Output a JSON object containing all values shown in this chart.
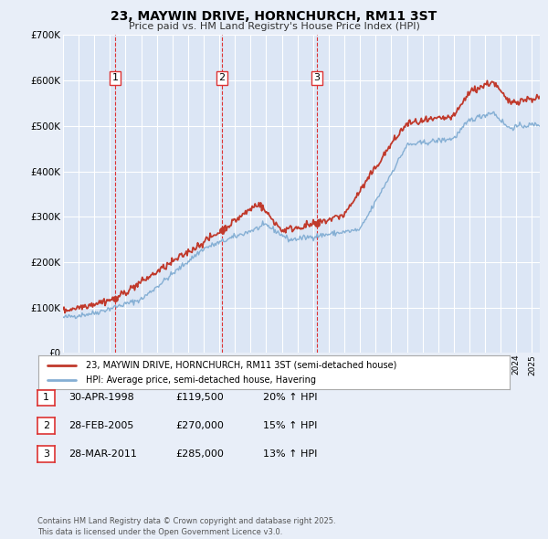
{
  "title": "23, MAYWIN DRIVE, HORNCHURCH, RM11 3ST",
  "subtitle": "Price paid vs. HM Land Registry's House Price Index (HPI)",
  "bg_color": "#e8eef8",
  "plot_bg_color": "#dce6f5",
  "grid_color": "#ffffff",
  "ylim": [
    0,
    700000
  ],
  "yticks": [
    0,
    100000,
    200000,
    300000,
    400000,
    500000,
    600000,
    700000
  ],
  "ytick_labels": [
    "£0",
    "£100K",
    "£200K",
    "£300K",
    "£400K",
    "£500K",
    "£600K",
    "£700K"
  ],
  "xlim_start": 1995.0,
  "xlim_end": 2025.5,
  "sale_dates": [
    1998.33,
    2005.16,
    2011.24
  ],
  "sale_prices": [
    119500,
    270000,
    285000
  ],
  "sale_labels": [
    "1",
    "2",
    "3"
  ],
  "vline_color": "#dd3333",
  "marker_color": "#c0392b",
  "legend_red_label": "23, MAYWIN DRIVE, HORNCHURCH, RM11 3ST (semi-detached house)",
  "legend_blue_label": "HPI: Average price, semi-detached house, Havering",
  "table_rows": [
    {
      "num": "1",
      "date": "30-APR-1998",
      "price": "£119,500",
      "hpi": "20% ↑ HPI"
    },
    {
      "num": "2",
      "date": "28-FEB-2005",
      "price": "£270,000",
      "hpi": "15% ↑ HPI"
    },
    {
      "num": "3",
      "date": "28-MAR-2011",
      "price": "£285,000",
      "hpi": "13% ↑ HPI"
    }
  ],
  "footer": "Contains HM Land Registry data © Crown copyright and database right 2025.\nThis data is licensed under the Open Government Licence v3.0.",
  "red_line_color": "#c0392b",
  "blue_line_color": "#85afd4"
}
